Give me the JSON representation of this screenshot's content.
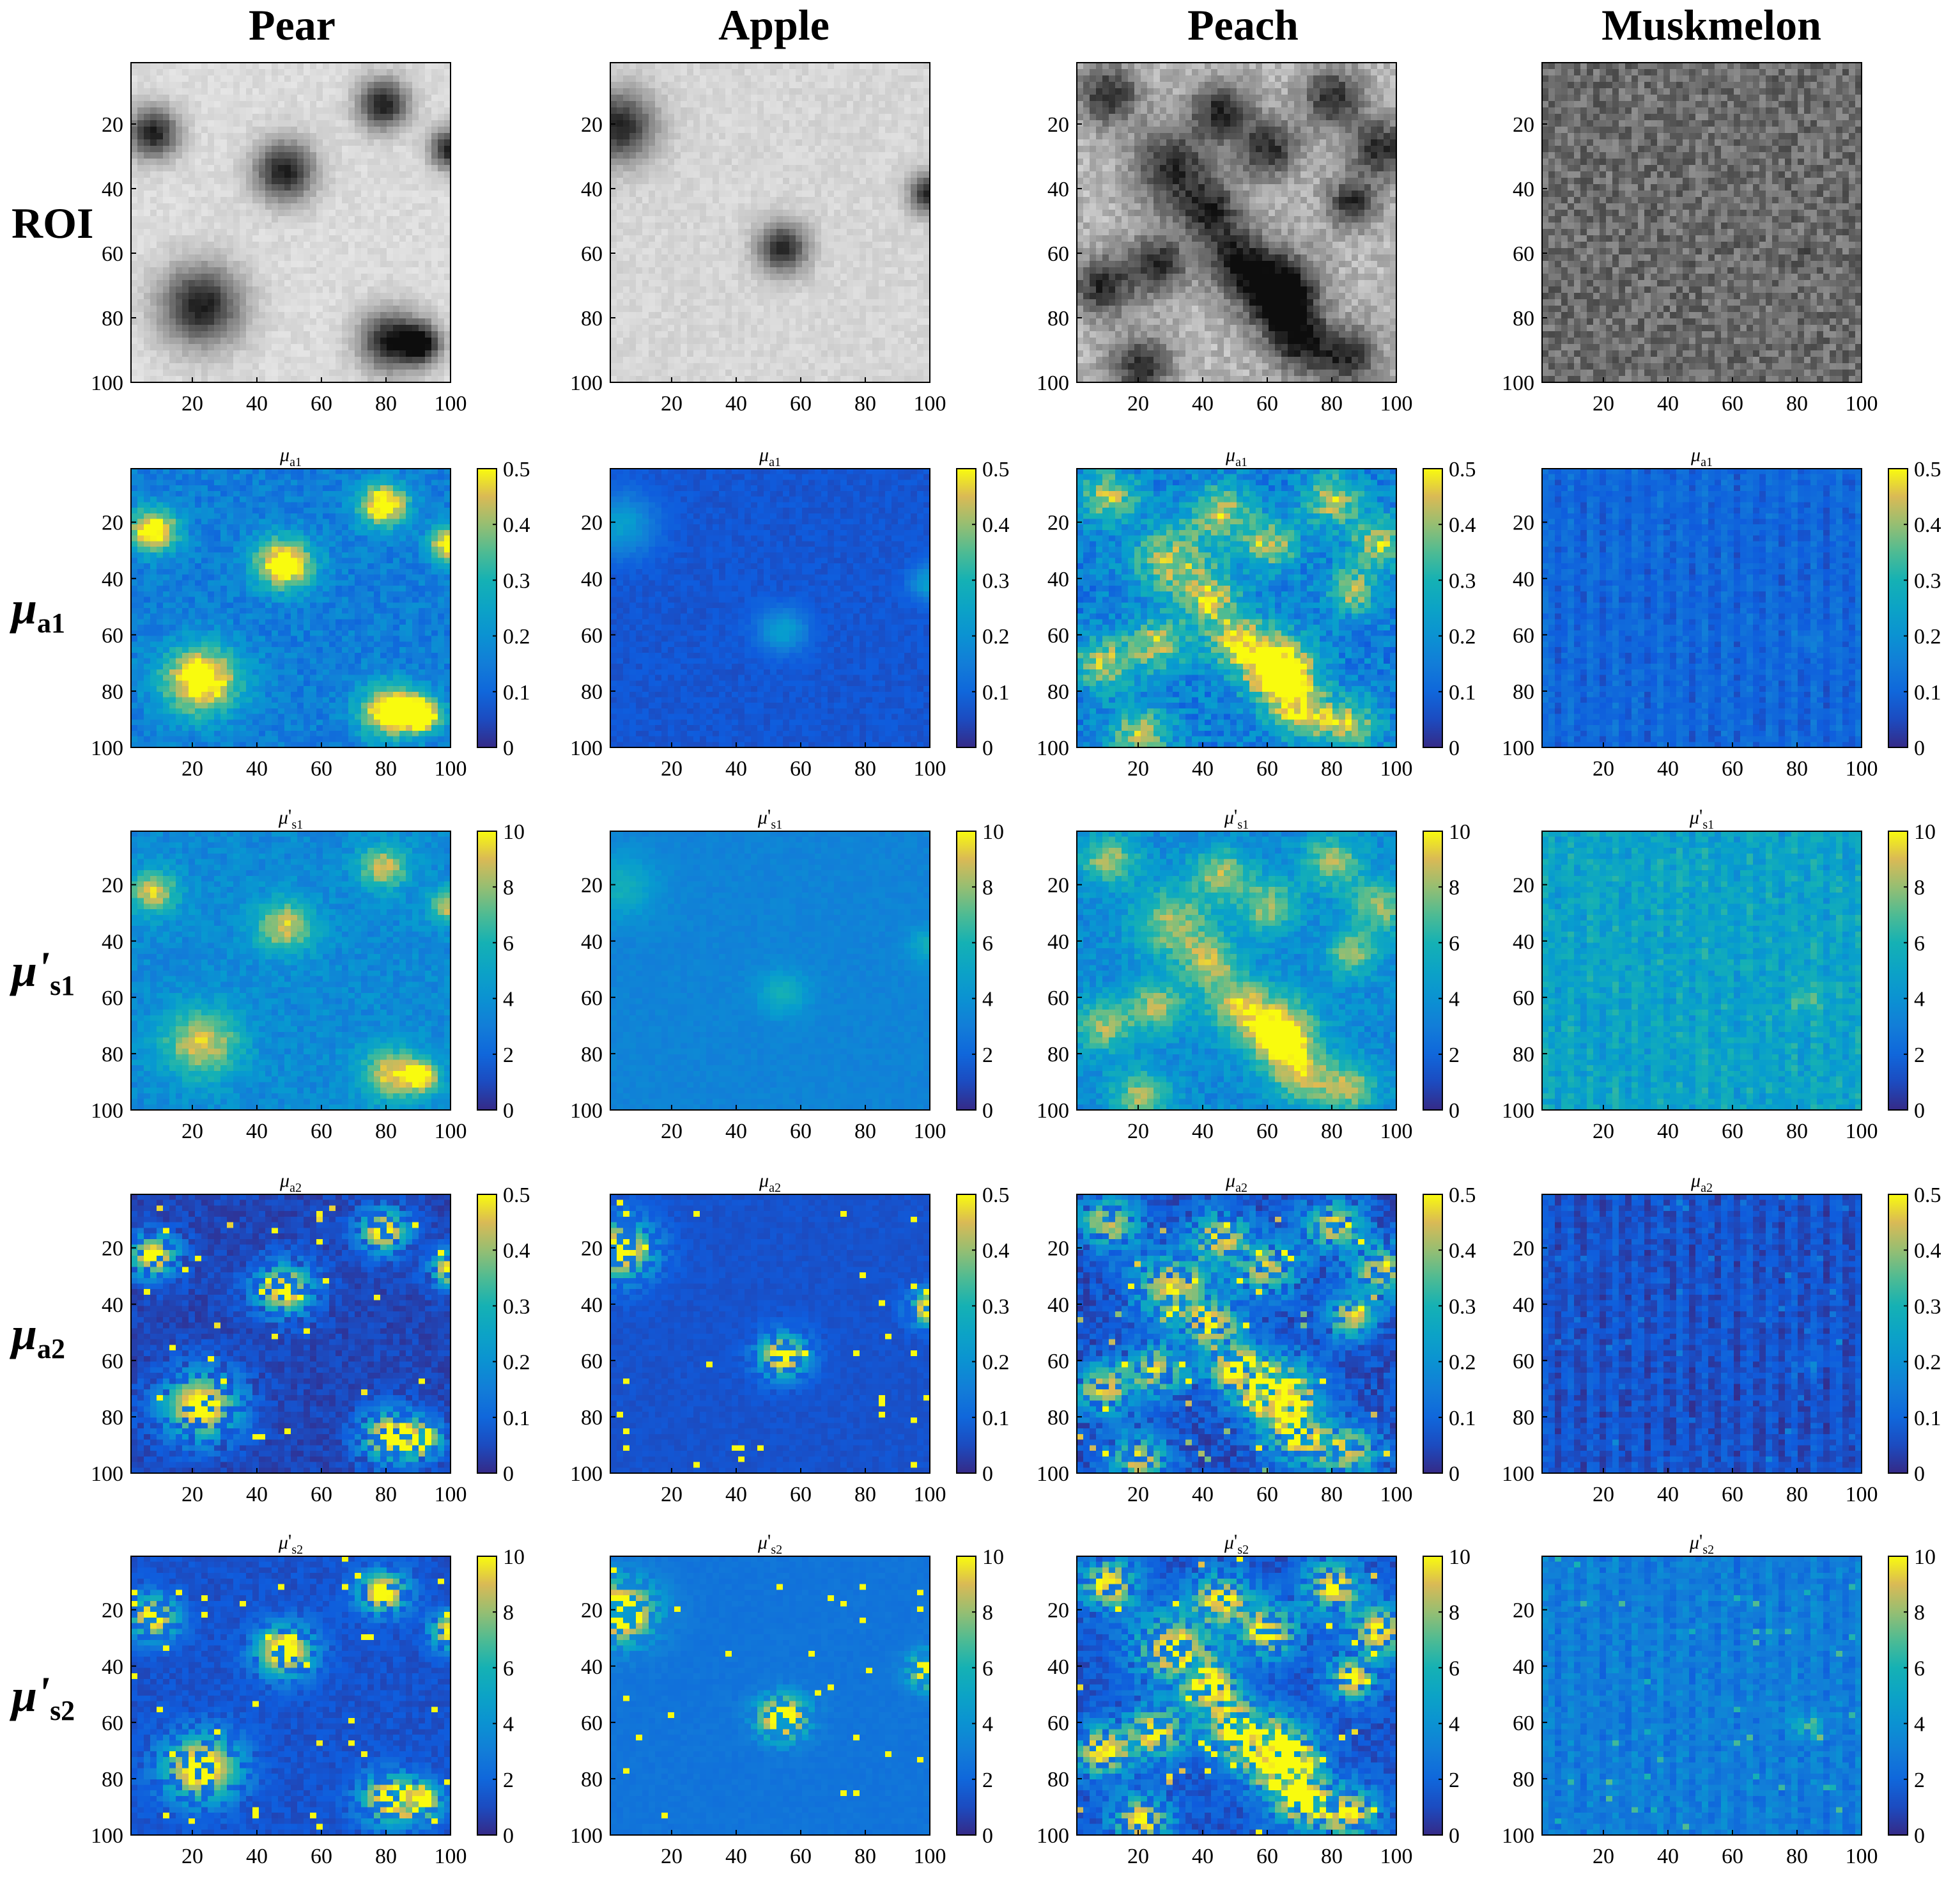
{
  "chart_data": {
    "type": "heatmap",
    "columns": [
      "Pear",
      "Apple",
      "Peach",
      "Muskmelon"
    ],
    "rows": [
      {
        "id": "roi",
        "label": "ROI",
        "label_base": "",
        "label_prime": "",
        "label_sub": "",
        "panel_title_base": "",
        "panel_title_prime": "",
        "panel_title_sub": "",
        "colormap": "gray",
        "colorbar": false
      },
      {
        "id": "mua1",
        "label": "μa1",
        "label_base": "μ",
        "label_prime": "",
        "label_sub": "a1",
        "panel_title_base": "μ",
        "panel_title_prime": "",
        "panel_title_sub": "a1",
        "colormap": "parula",
        "colorbar": true,
        "clim": [
          0,
          0.5
        ],
        "cbar_ticks": [
          "0",
          "0.1",
          "0.2",
          "0.3",
          "0.4",
          "0.5"
        ]
      },
      {
        "id": "mus1",
        "label": "μ's1",
        "label_base": "μ",
        "label_prime": "'",
        "label_sub": "s1",
        "panel_title_base": "μ",
        "panel_title_prime": "'",
        "panel_title_sub": "s1",
        "colormap": "parula",
        "colorbar": true,
        "clim": [
          0,
          10
        ],
        "cbar_ticks": [
          "0",
          "2",
          "4",
          "6",
          "8",
          "10"
        ]
      },
      {
        "id": "mua2",
        "label": "μa2",
        "label_base": "μ",
        "label_prime": "",
        "label_sub": "a2",
        "panel_title_base": "μ",
        "panel_title_prime": "",
        "panel_title_sub": "a2",
        "colormap": "parula",
        "colorbar": true,
        "clim": [
          0,
          0.5
        ],
        "cbar_ticks": [
          "0",
          "0.1",
          "0.2",
          "0.3",
          "0.4",
          "0.5"
        ]
      },
      {
        "id": "mus2",
        "label": "μ's2",
        "label_base": "μ",
        "label_prime": "'",
        "label_sub": "s2",
        "panel_title_base": "μ",
        "panel_title_prime": "'",
        "panel_title_sub": "s2",
        "colormap": "parula",
        "colorbar": true,
        "clim": [
          0,
          10
        ],
        "cbar_ticks": [
          "0",
          "2",
          "4",
          "6",
          "8",
          "10"
        ]
      }
    ],
    "x_ticks": [
      "20",
      "40",
      "60",
      "80",
      "100"
    ],
    "y_ticks": [
      "20",
      "40",
      "60",
      "80",
      "100"
    ],
    "xlim": [
      1,
      100
    ],
    "ylim": [
      1,
      100
    ],
    "y_direction": "reverse",
    "grid": false,
    "hotspots": {
      "Pear": [
        [
          7,
          22,
          2.5
        ],
        [
          48,
          34,
          3
        ],
        [
          79,
          13,
          2.5
        ],
        [
          22,
          76,
          4
        ],
        [
          81,
          87,
          3
        ],
        [
          91,
          88,
          2
        ],
        [
          100,
          27,
          2
        ]
      ],
      "Apple": [
        [
          3,
          20,
          3.5
        ],
        [
          54,
          58,
          2.5
        ],
        [
          100,
          41,
          2
        ]
      ],
      "Peach": [
        [
          30,
          33,
          4
        ],
        [
          60,
          27,
          3
        ],
        [
          42,
          47,
          3
        ],
        [
          80,
          11,
          3
        ],
        [
          95,
          27,
          3
        ],
        [
          62,
          70,
          4
        ],
        [
          65,
          75,
          3
        ],
        [
          25,
          63,
          3
        ],
        [
          50,
          62,
          3
        ],
        [
          8,
          70,
          3
        ],
        [
          86,
          44,
          2.5
        ],
        [
          70,
          88,
          3
        ],
        [
          20,
          95,
          3
        ],
        [
          85,
          92,
          3
        ],
        [
          45,
          15,
          3
        ],
        [
          10,
          10,
          3
        ]
      ],
      "Muskmelon": [
        [
          83,
          61,
          1.5
        ]
      ]
    }
  }
}
